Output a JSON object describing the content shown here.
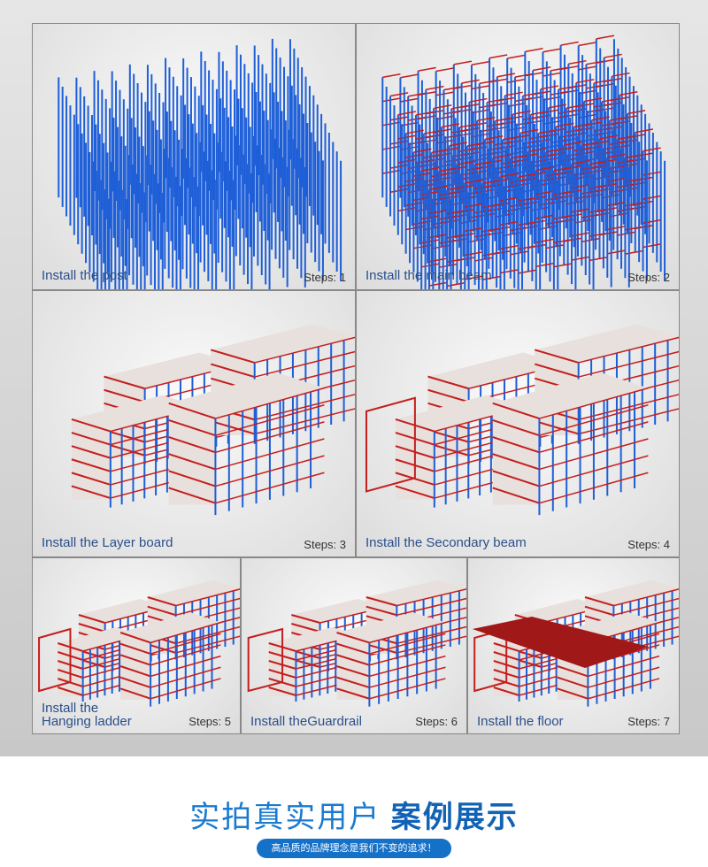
{
  "steps": [
    {
      "caption": "Install the post",
      "step": "Steps: 1"
    },
    {
      "caption": "Install the main beam",
      "step": "Steps: 2"
    },
    {
      "caption": "Install the Layer board",
      "step": "Steps: 3"
    },
    {
      "caption": "Install the Secondary beam",
      "step": "Steps: 4"
    },
    {
      "caption": "Install the\nHanging ladder",
      "step": "Steps: 5"
    },
    {
      "caption": "Install theGuardrail",
      "step": "Steps: 6"
    },
    {
      "caption": "Install the floor",
      "step": "Steps: 7"
    }
  ],
  "footer": {
    "title_light": "实拍真实用户",
    "title_bold": "案例展示",
    "slogan": "高品质的品牌理念是我们不变的追求！"
  },
  "colors": {
    "post": "#1e5fd8",
    "beam": "#c41e1e",
    "board": "#e8e0dc",
    "accent": "#1570c8"
  }
}
